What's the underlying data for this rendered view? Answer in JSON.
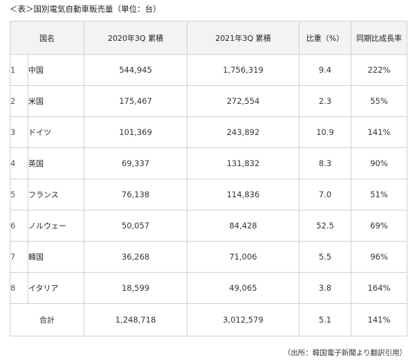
{
  "caption": "＜表＞国別電気自動車販売量（単位：台）",
  "headers": {
    "country": "国名",
    "sales_2020": "2020年3Q 累積",
    "sales_2021": "2021年3Q 累積",
    "share": "比重（%）",
    "growth": "同期比成長率"
  },
  "rows": [
    {
      "rank": "1",
      "country": "中国",
      "sales_2020": "544,945",
      "sales_2021": "1,756,319",
      "share": "9.4",
      "growth": "222%"
    },
    {
      "rank": "2",
      "country": "米国",
      "sales_2020": "175,467",
      "sales_2021": "272,554",
      "share": "2.3",
      "growth": "55%"
    },
    {
      "rank": "3",
      "country": "ドイツ",
      "sales_2020": "101,369",
      "sales_2021": "243,892",
      "share": "10.9",
      "growth": "141%"
    },
    {
      "rank": "4",
      "country": "英国",
      "sales_2020": "69,337",
      "sales_2021": "131,832",
      "share": "8.3",
      "growth": "90%"
    },
    {
      "rank": "5",
      "country": "フランス",
      "sales_2020": "76,138",
      "sales_2021": "114,836",
      "share": "7.0",
      "growth": "51%"
    },
    {
      "rank": "6",
      "country": "ノルウェー",
      "sales_2020": "50,057",
      "sales_2021": "84,428",
      "share": "52.5",
      "growth": "69%"
    },
    {
      "rank": "7",
      "country": "韓国",
      "sales_2020": "36,268",
      "sales_2021": "71,006",
      "share": "5.5",
      "growth": "96%"
    },
    {
      "rank": "8",
      "country": "イタリア",
      "sales_2020": "18,599",
      "sales_2021": "49,065",
      "share": "3.8",
      "growth": "164%"
    }
  ],
  "total": {
    "label": "合計",
    "sales_2020": "1,248,718",
    "sales_2021": "3,012,579",
    "share": "5.1",
    "growth": "141%"
  },
  "source": "（出所：韓国電子新聞より翻訳引用）"
}
